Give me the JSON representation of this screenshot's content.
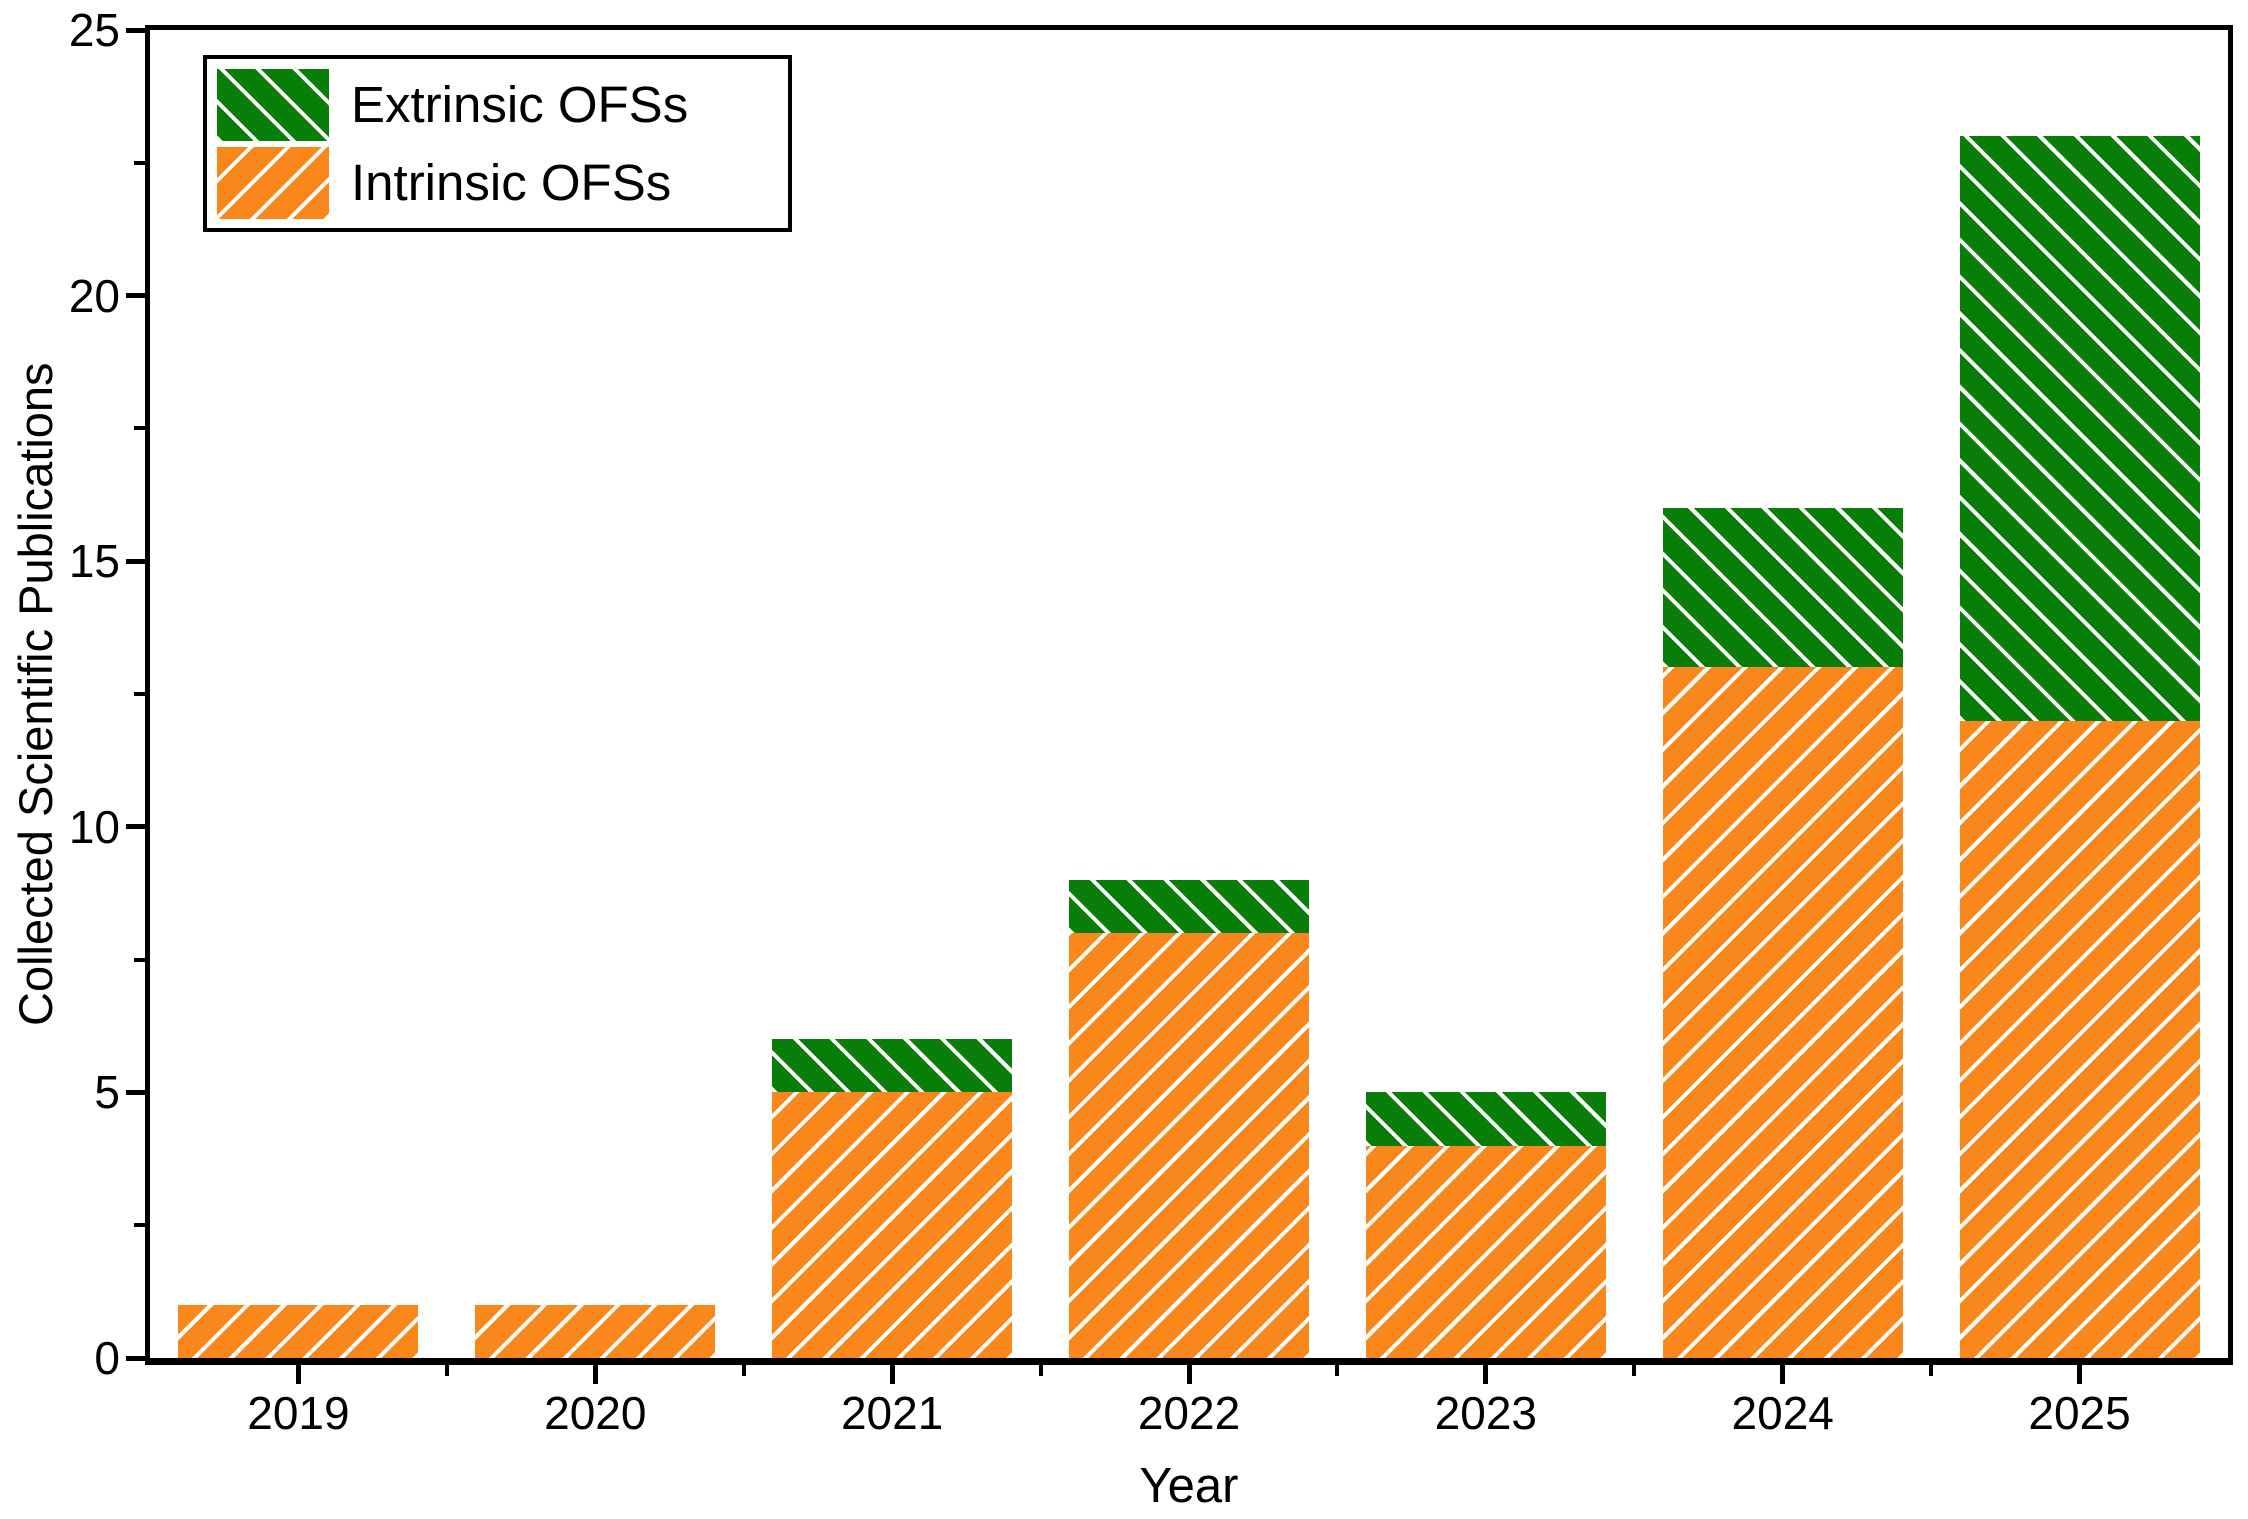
{
  "chart_data": {
    "type": "bar",
    "stacked": true,
    "title": "",
    "xlabel": "Year",
    "ylabel": "Collected Scientific Publications",
    "categories": [
      "2019",
      "2020",
      "2021",
      "2022",
      "2023",
      "2024",
      "2025"
    ],
    "series": [
      {
        "name": "Intrinsic OFSs",
        "key": "intrinsic",
        "color": "#F9871B",
        "hatch": "/",
        "hatch_line_color": "#FFFFFF",
        "values": [
          1,
          1,
          5,
          8,
          4,
          13,
          12
        ]
      },
      {
        "name": "Extrinsic OFSs",
        "key": "extrinsic",
        "color": "#087E08",
        "hatch": "\\",
        "hatch_line_color": "#FFFFFF",
        "values": [
          0,
          0,
          1,
          1,
          1,
          3,
          11
        ]
      }
    ],
    "stack_totals": [
      1,
      1,
      6,
      9,
      5,
      16,
      23
    ],
    "legend": [
      "Extrinsic OFSs",
      "Intrinsic OFSs"
    ],
    "legend_position": "top-left",
    "legend_border": true,
    "ylim": [
      0,
      25
    ],
    "y_ticks": [
      {
        "value": 0,
        "label": "0"
      },
      {
        "value": 5,
        "label": "5"
      },
      {
        "value": 10,
        "label": "10"
      },
      {
        "value": 15,
        "label": "15"
      },
      {
        "value": 20,
        "label": "20"
      },
      {
        "value": 25,
        "label": "25"
      }
    ],
    "y_minor_ticks": [
      2.5,
      7.5,
      12.5,
      17.5,
      22.5
    ],
    "grid": false,
    "axis_color": "#000000",
    "background_color": "#FFFFFF"
  }
}
